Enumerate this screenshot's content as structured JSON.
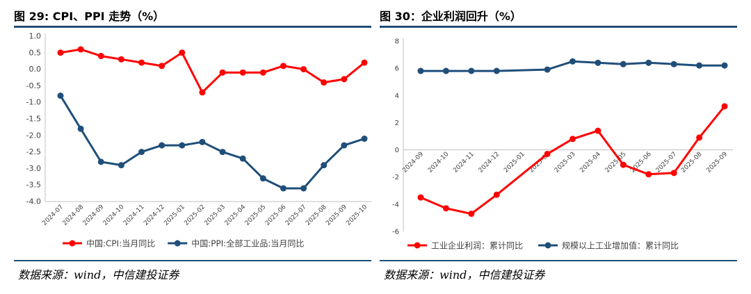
{
  "charts": [
    {
      "title": "图 29: CPI、PPI 走势（%）",
      "source": "数据来源：wind，中信建投证券",
      "chart_data": {
        "type": "line",
        "title": "图 29: CPI、PPI 走势（%）",
        "x": [
          "2024-07",
          "2024-08",
          "2024-09",
          "2024-10",
          "2024-11",
          "2024-12",
          "2025-01",
          "2025-02",
          "2025-03",
          "2025-04",
          "2025-05",
          "2025-06",
          "2025-07",
          "2025-08",
          "2025-09",
          "2025-10"
        ],
        "ylim": [
          -4.0,
          1.0
        ],
        "yticks": [
          1.0,
          0.5,
          0.0,
          -0.5,
          -1.0,
          -1.5,
          -2.0,
          -2.5,
          -3.0,
          -3.5,
          -4.0
        ],
        "ytick_labels": [
          "1.0",
          "0.5",
          "0.0",
          "-0.5",
          "-1.0",
          "-1.5",
          "-2.0",
          "-2.5",
          "-3.0",
          "-3.5",
          "-4.0"
        ],
        "grid": false,
        "legend": "bottom",
        "series": [
          {
            "name": "中国:CPI:当月同比",
            "color": "#ff0000",
            "values": [
              0.5,
              0.6,
              0.4,
              0.3,
              0.2,
              0.1,
              0.5,
              -0.7,
              -0.1,
              -0.1,
              -0.1,
              0.1,
              0.0,
              -0.4,
              -0.3,
              0.2
            ]
          },
          {
            "name": "中国:PPI:全部工业品:当月同比",
            "color": "#1f4e79",
            "values": [
              -0.8,
              -1.8,
              -2.8,
              -2.9,
              -2.5,
              -2.3,
              -2.3,
              -2.2,
              -2.5,
              -2.7,
              -3.3,
              -3.6,
              -3.6,
              -2.9,
              -2.3,
              -2.1
            ]
          }
        ]
      }
    },
    {
      "title": "图 30：企业利润回升（%）",
      "source": "数据来源：wind，中信建投证券",
      "chart_data": {
        "type": "line",
        "title": "图 30：企业利润回升（%）",
        "x": [
          "2024-09",
          "2024-10",
          "2024-11",
          "2024-12",
          "2025-01",
          "2025-02",
          "2025-03",
          "2025-04",
          "2025-05",
          "2025-06",
          "2025-07",
          "2025-08",
          "2025-09"
        ],
        "ylim": [
          -6,
          8
        ],
        "yticks": [
          8,
          6,
          4,
          2,
          0,
          -2,
          -4,
          -6
        ],
        "ytick_labels": [
          "8",
          "6",
          "4",
          "2",
          "0",
          "-2",
          "-4",
          "-6"
        ],
        "grid": false,
        "legend": "bottom",
        "series": [
          {
            "name": "工业企业利润：累计同比",
            "color": "#ff0000",
            "values": [
              -3.5,
              -4.3,
              -4.7,
              -3.3,
              null,
              -0.3,
              0.8,
              1.4,
              -1.1,
              -1.8,
              -1.7,
              0.9,
              3.2
            ]
          },
          {
            "name": "规模以上工业增加值：累计同比",
            "color": "#1f4e79",
            "values": [
              5.8,
              5.8,
              5.8,
              5.8,
              null,
              5.9,
              6.5,
              6.4,
              6.3,
              6.4,
              6.3,
              6.2,
              6.2
            ]
          }
        ]
      }
    }
  ]
}
